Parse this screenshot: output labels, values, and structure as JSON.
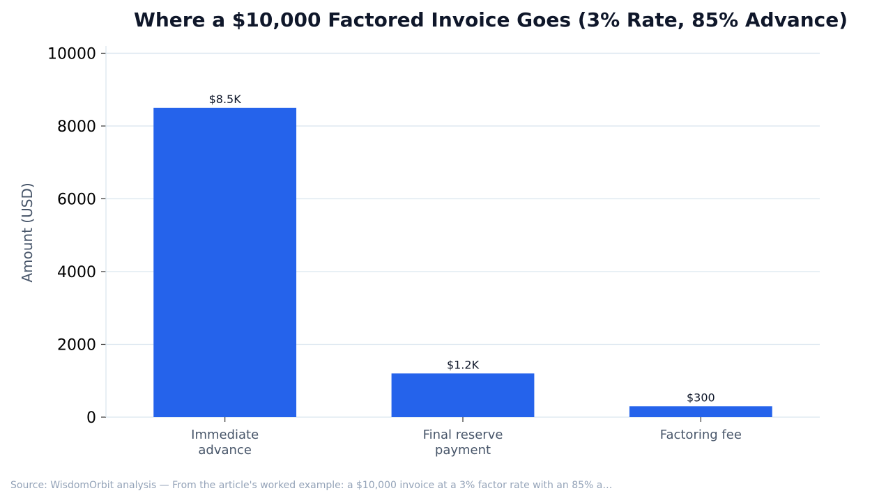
{
  "chart_data": {
    "type": "bar",
    "title": "Where a $10,000 Factored Invoice Goes (3% Rate, 85% Advance)",
    "xlabel": "",
    "ylabel": "Amount (USD)",
    "categories": [
      [
        "Immediate",
        "advance"
      ],
      [
        "Final reserve",
        "payment"
      ],
      [
        "Factoring fee"
      ]
    ],
    "values": [
      8500,
      1200,
      300
    ],
    "data_labels": [
      "$8.5K",
      "$1.2K",
      "$300"
    ],
    "ylim": [
      0,
      10200
    ],
    "yticks": [
      0,
      2000,
      4000,
      6000,
      8000,
      10000
    ],
    "grid": true,
    "legend": "none",
    "bar_color": "#2563eb",
    "grid_color": "#dbe6ef",
    "source": "Source: WisdomOrbit analysis — From the article's worked example: a $10,000 invoice at a 3% factor rate with an 85% a…"
  }
}
